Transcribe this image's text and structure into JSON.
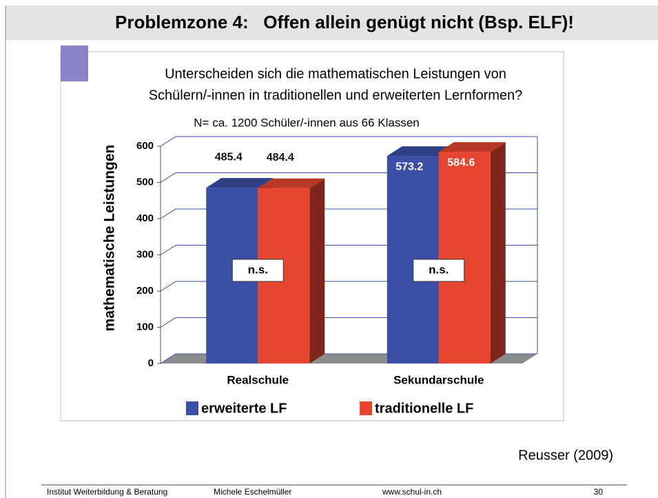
{
  "slide": {
    "title": "Problemzone 4:   Offen allein genügt nicht (Bsp. ELF)!",
    "source": "Reusser (2009)",
    "footer": {
      "institute": "Institut Weiterbildung & Beratung",
      "author": "Michele Eschelmüller",
      "url": "www.schul-in.ch",
      "page": 30
    }
  },
  "chart_data": {
    "type": "bar",
    "title": [
      "Unterscheiden sich die mathematischen Leistungen von",
      "Schülern/-innen in traditionellen und erweiterten Lernformen?"
    ],
    "subtitle": "N= ca. 1200 Schüler/-innen aus 66 Klassen",
    "y_label": "mathematische Leistungen",
    "categories": [
      "Realschule",
      "Sekundarschule"
    ],
    "series": [
      {
        "name": "erweiterte LF",
        "color": "#3b4fa6",
        "values": [
          485.4,
          573.2
        ]
      },
      {
        "name": "traditionelle LF",
        "color": "#e6452f",
        "values": [
          484.4,
          584.6
        ]
      }
    ],
    "annotations": [
      "n.s.",
      "n.s."
    ],
    "ylim": [
      0,
      600
    ],
    "yticks": [
      0,
      100,
      200,
      300,
      400,
      500,
      600
    ],
    "grid": true
  }
}
